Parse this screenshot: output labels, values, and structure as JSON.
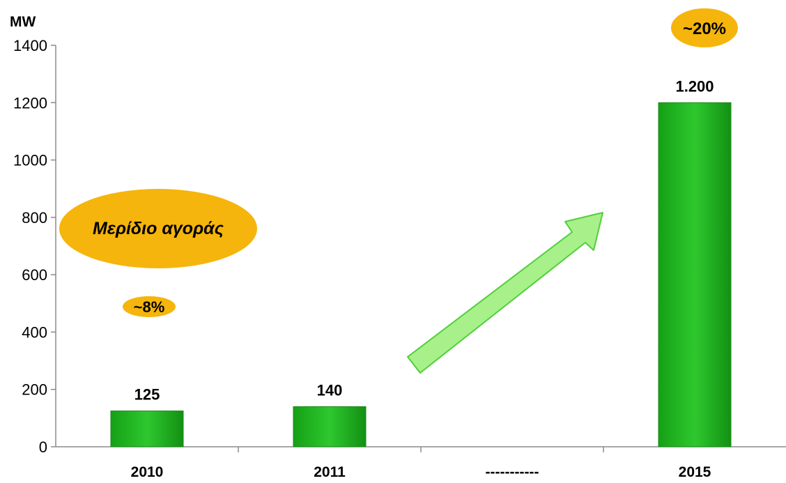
{
  "chart_data": {
    "type": "bar",
    "unit_label": "MW",
    "categories": [
      "2010",
      "2011",
      "-----------",
      "2015"
    ],
    "values": [
      125,
      140,
      null,
      1200
    ],
    "value_labels": [
      "125",
      "140",
      "",
      "1.200"
    ],
    "ylim": [
      0,
      1400
    ],
    "yticks": [
      0,
      200,
      400,
      600,
      800,
      1000,
      1200,
      1400
    ],
    "grid": false,
    "bar_color": "#22b022",
    "annotations": {
      "market_share_label": "Μερίδιο αγοράς",
      "share_2010": "~8%",
      "share_2015": "~20%",
      "badge_color": "#f5b50c",
      "arrow_color": "#a8f08a"
    }
  }
}
